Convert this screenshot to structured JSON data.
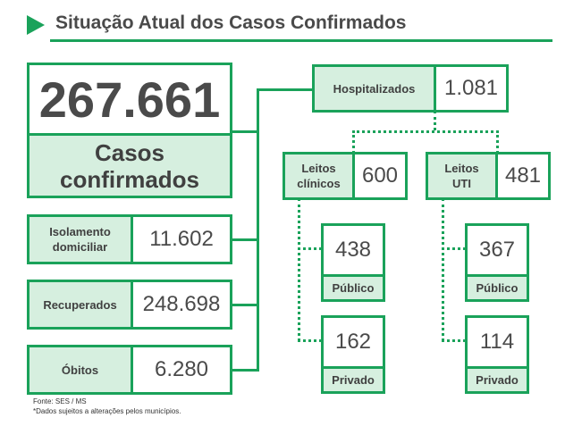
{
  "header": {
    "title": "Situação Atual dos Casos Confirmados"
  },
  "total": {
    "value": "267.661",
    "label_line1": "Casos",
    "label_line2": "confirmados"
  },
  "isolamento": {
    "label_line1": "Isolamento",
    "label_line2": "domiciliar",
    "value": "11.602"
  },
  "recuperados": {
    "label": "Recuperados",
    "value": "248.698"
  },
  "obitos": {
    "label": "Óbitos",
    "value": "6.280"
  },
  "hospitalizados": {
    "label": "Hospitalizados",
    "value": "1.081"
  },
  "leitos_clinicos": {
    "label_line1": "Leitos",
    "label_line2": "clínicos",
    "value": "600",
    "publico": {
      "value": "438",
      "label": "Público"
    },
    "privado": {
      "value": "162",
      "label": "Privado"
    }
  },
  "leitos_uti": {
    "label_line1": "Leitos",
    "label_line2": "UTI",
    "value": "481",
    "publico": {
      "value": "367",
      "label": "Público"
    },
    "privado": {
      "value": "114",
      "label": "Privado"
    }
  },
  "footer": {
    "source": "Fonte: SES / MS",
    "note": "*Dados sujeitos a alterações pelos municípios."
  },
  "colors": {
    "accent": "#1aa25a",
    "label_bg": "#d6efdf",
    "text": "#4a4a4a"
  }
}
